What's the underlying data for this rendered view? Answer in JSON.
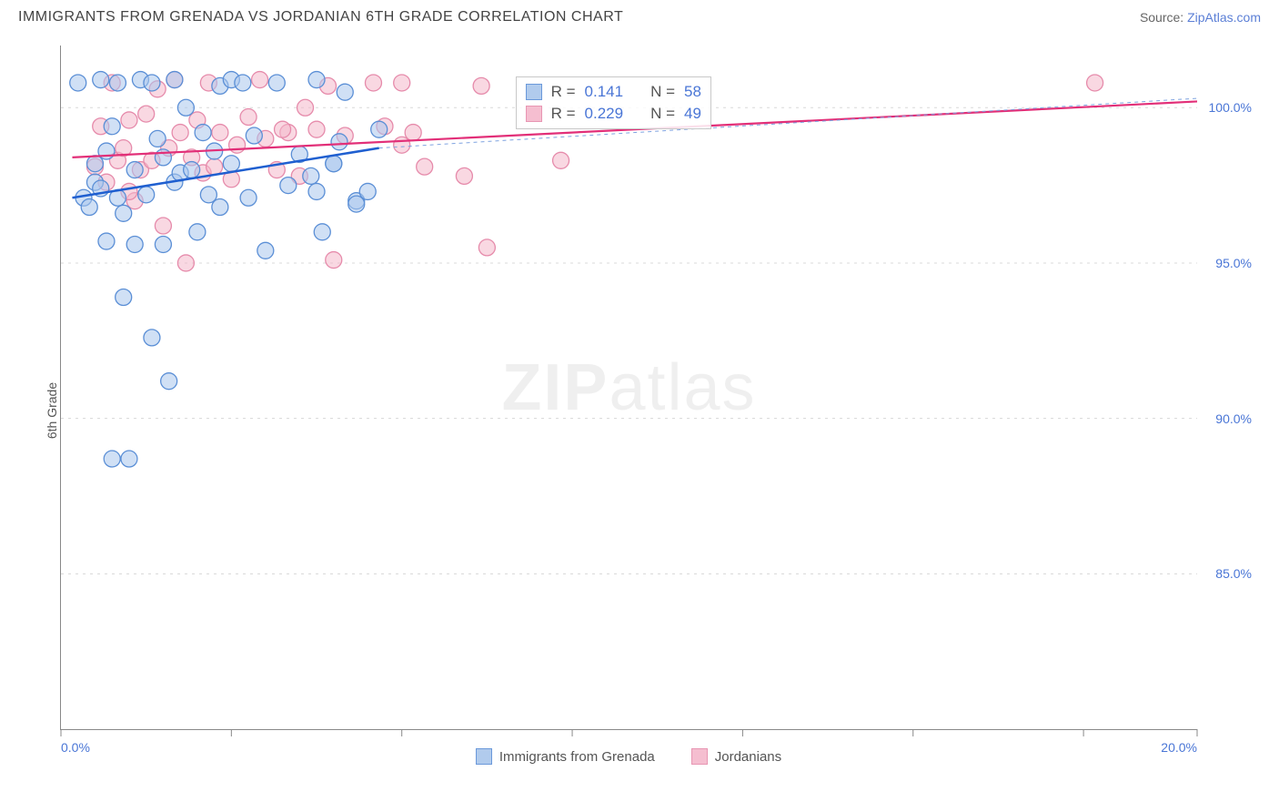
{
  "header": {
    "title": "IMMIGRANTS FROM GRENADA VS JORDANIAN 6TH GRADE CORRELATION CHART",
    "source_prefix": "Source: ",
    "source_link": "ZipAtlas.com"
  },
  "axes": {
    "ylabel": "6th Grade",
    "xlim": [
      0,
      20
    ],
    "ylim": [
      80,
      102
    ],
    "xtick_values": [
      0,
      20
    ],
    "xtick_labels": [
      "0.0%",
      "20.0%"
    ],
    "ytick_values": [
      85,
      90,
      95,
      100
    ],
    "ytick_labels": [
      "85.0%",
      "90.0%",
      "95.0%",
      "100.0%"
    ],
    "x_minor_ticks": [
      3,
      6,
      9,
      12,
      15,
      18
    ],
    "grid_color": "#d8d8d8",
    "axis_color": "#888888",
    "tick_label_color": "#4a76d6",
    "label_color": "#555555",
    "label_fontsize": 14
  },
  "series": {
    "grenada": {
      "label": "Immigrants from Grenada",
      "fill_color": "#a9c6ec",
      "stroke_color": "#5b8fd6",
      "fill_opacity": 0.55,
      "marker_radius": 9,
      "points": [
        [
          0.3,
          100.8
        ],
        [
          0.4,
          97.1
        ],
        [
          0.5,
          96.8
        ],
        [
          0.6,
          97.6
        ],
        [
          0.6,
          98.2
        ],
        [
          0.7,
          100.9
        ],
        [
          0.7,
          97.4
        ],
        [
          0.8,
          95.7
        ],
        [
          0.8,
          98.6
        ],
        [
          0.9,
          99.4
        ],
        [
          0.9,
          88.7
        ],
        [
          1.0,
          97.1
        ],
        [
          1.0,
          100.8
        ],
        [
          1.1,
          93.9
        ],
        [
          1.1,
          96.6
        ],
        [
          1.2,
          88.7
        ],
        [
          1.3,
          98.0
        ],
        [
          1.3,
          95.6
        ],
        [
          1.4,
          100.9
        ],
        [
          1.5,
          97.2
        ],
        [
          1.6,
          100.8
        ],
        [
          1.6,
          92.6
        ],
        [
          1.7,
          99.0
        ],
        [
          1.8,
          95.6
        ],
        [
          1.8,
          98.4
        ],
        [
          1.9,
          91.2
        ],
        [
          2.0,
          97.6
        ],
        [
          2.0,
          100.9
        ],
        [
          2.1,
          97.9
        ],
        [
          2.2,
          100.0
        ],
        [
          2.3,
          98.0
        ],
        [
          2.4,
          96.0
        ],
        [
          2.5,
          99.2
        ],
        [
          2.6,
          97.2
        ],
        [
          2.7,
          98.6
        ],
        [
          2.8,
          100.7
        ],
        [
          2.8,
          96.8
        ],
        [
          3.0,
          98.2
        ],
        [
          3.0,
          100.9
        ],
        [
          3.2,
          100.8
        ],
        [
          3.3,
          97.1
        ],
        [
          3.4,
          99.1
        ],
        [
          3.6,
          95.4
        ],
        [
          3.8,
          100.8
        ],
        [
          4.0,
          97.5
        ],
        [
          4.2,
          98.5
        ],
        [
          4.4,
          97.8
        ],
        [
          4.5,
          100.9
        ],
        [
          4.6,
          96.0
        ],
        [
          4.8,
          98.2
        ],
        [
          5.0,
          100.5
        ],
        [
          5.2,
          97.0
        ],
        [
          5.4,
          97.3
        ],
        [
          5.6,
          99.3
        ],
        [
          5.2,
          96.9
        ],
        [
          4.8,
          98.2
        ],
        [
          4.9,
          98.9
        ],
        [
          4.5,
          97.3
        ]
      ],
      "trend": {
        "x1": 0.2,
        "y1": 97.1,
        "x2": 5.6,
        "y2": 98.7,
        "color": "#1f5fd0",
        "width": 2.5
      },
      "trend_dash": {
        "x1": 5.6,
        "y1": 98.7,
        "x2": 20.0,
        "y2": 100.3,
        "color": "#7fa3e0",
        "width": 1,
        "dash": "4,4"
      },
      "R": "0.141",
      "N": "58"
    },
    "jordan": {
      "label": "Jordanians",
      "fill_color": "#f4b8cb",
      "stroke_color": "#e68bab",
      "fill_opacity": 0.55,
      "marker_radius": 9,
      "points": [
        [
          0.6,
          98.1
        ],
        [
          0.7,
          99.4
        ],
        [
          0.8,
          97.6
        ],
        [
          0.9,
          100.8
        ],
        [
          1.0,
          98.3
        ],
        [
          1.1,
          98.7
        ],
        [
          1.2,
          99.6
        ],
        [
          1.3,
          97.0
        ],
        [
          1.4,
          98.0
        ],
        [
          1.5,
          99.8
        ],
        [
          1.6,
          98.3
        ],
        [
          1.7,
          100.6
        ],
        [
          1.8,
          96.2
        ],
        [
          1.9,
          98.7
        ],
        [
          2.0,
          100.9
        ],
        [
          2.1,
          99.2
        ],
        [
          2.2,
          95.0
        ],
        [
          2.3,
          98.4
        ],
        [
          2.4,
          99.6
        ],
        [
          2.5,
          97.9
        ],
        [
          2.6,
          100.8
        ],
        [
          2.8,
          99.2
        ],
        [
          3.0,
          97.7
        ],
        [
          3.1,
          98.8
        ],
        [
          3.3,
          99.7
        ],
        [
          3.5,
          100.9
        ],
        [
          3.6,
          99.0
        ],
        [
          3.8,
          98.0
        ],
        [
          4.0,
          99.2
        ],
        [
          4.2,
          97.8
        ],
        [
          4.3,
          100.0
        ],
        [
          4.5,
          99.3
        ],
        [
          4.7,
          100.7
        ],
        [
          4.8,
          95.1
        ],
        [
          5.0,
          99.1
        ],
        [
          5.5,
          100.8
        ],
        [
          5.7,
          99.4
        ],
        [
          6.0,
          100.8
        ],
        [
          6.0,
          98.8
        ],
        [
          6.2,
          99.2
        ],
        [
          6.4,
          98.1
        ],
        [
          7.1,
          97.8
        ],
        [
          7.4,
          100.7
        ],
        [
          7.5,
          95.5
        ],
        [
          8.8,
          98.3
        ],
        [
          18.2,
          100.8
        ],
        [
          3.9,
          99.3
        ],
        [
          2.7,
          98.1
        ],
        [
          1.2,
          97.3
        ]
      ],
      "trend": {
        "x1": 0.2,
        "y1": 98.4,
        "x2": 20.0,
        "y2": 100.2,
        "color": "#e22f78",
        "width": 2.2
      },
      "R": "0.229",
      "N": "49"
    }
  },
  "corr_box": {
    "rows": [
      {
        "series": "grenada",
        "label_r": "R =",
        "r": "0.141",
        "label_n": "N =",
        "n": "58"
      },
      {
        "series": "jordan",
        "label_r": "R =",
        "r": "0.229",
        "label_n": "N =",
        "n": "49"
      }
    ]
  },
  "watermark": {
    "bold": "ZIP",
    "thin": "atlas"
  },
  "colors": {
    "background": "#ffffff",
    "title_color": "#444444",
    "source_color": "#666666"
  }
}
